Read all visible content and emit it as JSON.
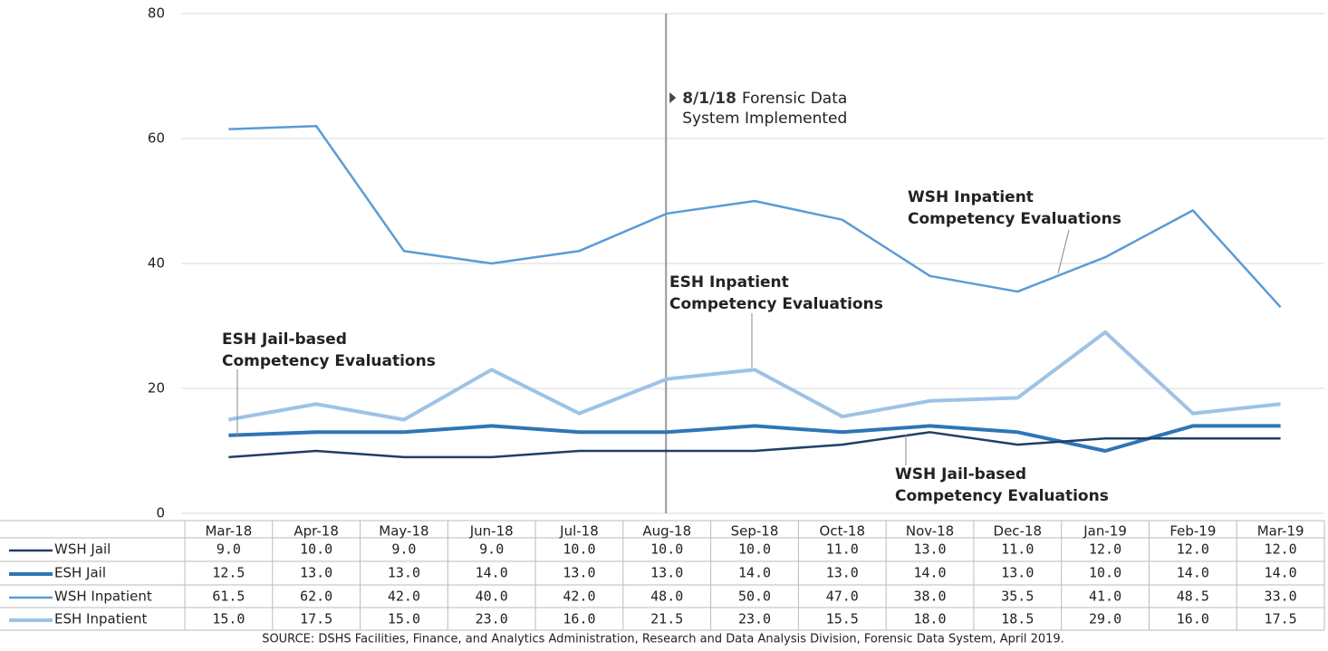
{
  "chart_data": {
    "type": "line",
    "categories": [
      "Mar-18",
      "Apr-18",
      "May-18",
      "Jun-18",
      "Jul-18",
      "Aug-18",
      "Sep-18",
      "Oct-18",
      "Nov-18",
      "Dec-18",
      "Jan-19",
      "Feb-19",
      "Mar-19"
    ],
    "ylim": [
      0,
      80
    ],
    "yticks": [
      0,
      20,
      40,
      60,
      80
    ],
    "grid": true,
    "series": [
      {
        "name": "WSH Jail",
        "color": "#1f3f66",
        "width": 2.5,
        "values": [
          9,
          10,
          9,
          9,
          10,
          10,
          10,
          11,
          13,
          11,
          12,
          12,
          12
        ],
        "value_labels": [
          "9.0",
          "10.0",
          "9.0",
          "9.0",
          "10.0",
          "10.0",
          "10.0",
          "11.0",
          "13.0",
          "11.0",
          "12.0",
          "12.0",
          "12.0"
        ],
        "annotation": [
          "WSH Jail-based",
          "Competency Evaluations"
        ]
      },
      {
        "name": "ESH Jail",
        "color": "#2e75b6",
        "width": 4,
        "values": [
          12.5,
          13,
          13,
          14,
          13,
          13,
          14,
          13,
          14,
          13,
          10,
          14,
          14
        ],
        "value_labels": [
          "12.5",
          "13.0",
          "13.0",
          "14.0",
          "13.0",
          "13.0",
          "14.0",
          "13.0",
          "14.0",
          "13.0",
          "10.0",
          "14.0",
          "14.0"
        ],
        "annotation": [
          "ESH Jail-based",
          "Competency Evaluations"
        ]
      },
      {
        "name": "WSH Inpatient",
        "color": "#5b9bd5",
        "width": 2.5,
        "values": [
          61.5,
          62,
          42,
          40,
          42,
          48,
          50,
          47,
          38,
          35.5,
          41,
          48.5,
          33
        ],
        "value_labels": [
          "61.5",
          "62.0",
          "42.0",
          "40.0",
          "42.0",
          "48.0",
          "50.0",
          "47.0",
          "38.0",
          "35.5",
          "41.0",
          "48.5",
          "33.0"
        ],
        "annotation": [
          "WSH Inpatient",
          "Competency Evaluations"
        ]
      },
      {
        "name": "ESH Inpatient",
        "color": "#9dc3e6",
        "width": 4,
        "values": [
          15,
          17.5,
          15,
          23,
          16,
          21.5,
          23,
          15.5,
          18,
          18.5,
          29,
          16,
          17.5
        ],
        "value_labels": [
          "15.0",
          "17.5",
          "15.0",
          "23.0",
          "16.0",
          "21.5",
          "23.0",
          "15.5",
          "18.0",
          "18.5",
          "29.0",
          "16.0",
          "17.5"
        ],
        "annotation": [
          "ESH Inpatient",
          "Competency Evaluations"
        ]
      }
    ],
    "marker": {
      "category": "Aug-18",
      "date": "8/1/18",
      "text": [
        "Forensic Data",
        "System Implemented"
      ]
    },
    "source": "SOURCE: DSHS Facilities, Finance, and Analytics Administration, Research and Data Analysis Division, Forensic Data System, April 2019."
  }
}
